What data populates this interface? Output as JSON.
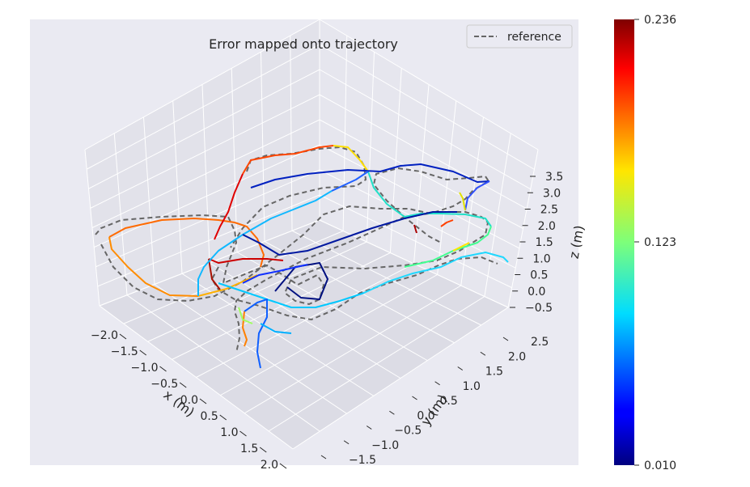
{
  "chart_data": {
    "type": "line",
    "title": "Error mapped onto trajectory",
    "xlabel": "x (m)",
    "ylabel": "y (m)",
    "zlabel": "z (m)",
    "x_ticks": [
      "−2.0",
      "−1.5",
      "−1.0",
      "−0.5",
      "0.0",
      "0.5",
      "1.0",
      "1.5",
      "2.0"
    ],
    "y_ticks": [
      "−1.5",
      "−1.0",
      "−0.5",
      "0.0",
      "0.5",
      "1.0",
      "1.5",
      "2.0",
      "2.5"
    ],
    "z_ticks": [
      "−0.5",
      "0.0",
      "0.5",
      "1.0",
      "1.5",
      "2.0",
      "2.5",
      "3.0",
      "3.5"
    ],
    "legend": {
      "entries": [
        {
          "label": "reference",
          "style": "dashed",
          "color": "#666666"
        }
      ],
      "position": "top-right"
    },
    "colorbar": {
      "colormap": "jet",
      "min_label": "0.010",
      "mid_label": "0.123",
      "max_label": "0.236",
      "min": 0.01,
      "max": 0.236
    },
    "grid": true,
    "background": "#eaeaf2"
  }
}
